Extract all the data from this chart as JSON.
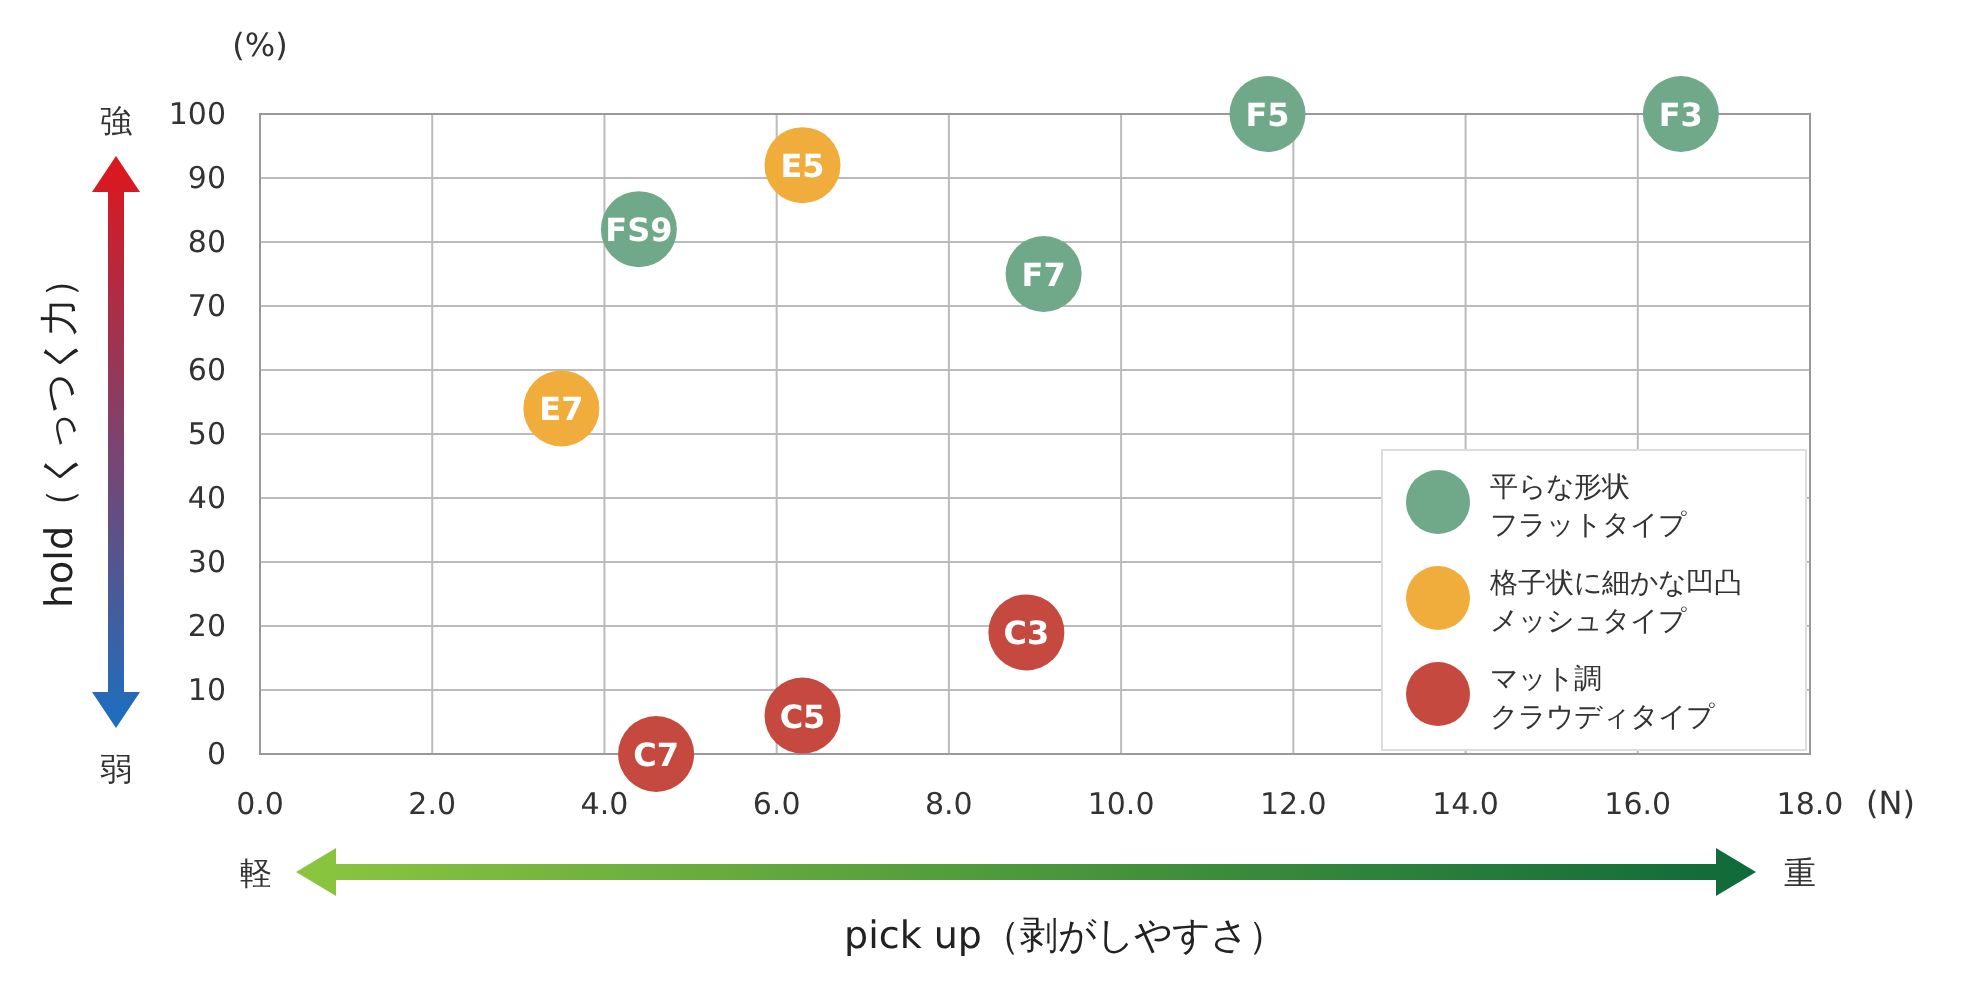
{
  "chart_data": {
    "type": "scatter",
    "xlabel": "pick up（剥がしやすさ）",
    "ylabel": "hold（くっつく力）",
    "xlim": [
      0,
      18
    ],
    "ylim": [
      0,
      100
    ],
    "xticks": [
      {
        "value": 0,
        "label": "0.0"
      },
      {
        "value": 2,
        "label": "2.0"
      },
      {
        "value": 4,
        "label": "4.0"
      },
      {
        "value": 6,
        "label": "6.0"
      },
      {
        "value": 8,
        "label": "8.0"
      },
      {
        "value": 10,
        "label": "10.0"
      },
      {
        "value": 12,
        "label": "12.0"
      },
      {
        "value": 14,
        "label": "14.0"
      },
      {
        "value": 16,
        "label": "16.0"
      },
      {
        "value": 18,
        "label": "18.0"
      }
    ],
    "yticks": [
      0,
      10,
      20,
      30,
      40,
      50,
      60,
      70,
      80,
      90,
      100
    ],
    "grid": true,
    "legend": "bottom right",
    "marker": "circle",
    "series": [
      {
        "name": "平らな形状フラットタイプ",
        "color": "#6fa98a",
        "x": [
          11.7,
          16.5,
          4.4,
          9.1
        ],
        "values": [
          100,
          100,
          82,
          75
        ]
      },
      {
        "name": "格子状に細かな凹凸メッシュタイプ",
        "color": "#f0ad3c",
        "x": [
          6.3,
          3.5
        ],
        "values": [
          92,
          54
        ]
      },
      {
        "name": "マット調クラウディタイプ",
        "color": "#c6493f",
        "x": [
          8.9,
          6.3,
          4.6
        ],
        "values": [
          19,
          6,
          0
        ]
      }
    ],
    "annotations": [
      "(%)",
      "(N)",
      "強",
      "弱",
      "軽",
      "重",
      {
        "text": "F5",
        "x": 11.7,
        "y": 100
      },
      {
        "text": "F3",
        "x": 16.5,
        "y": 100
      },
      {
        "text": "FS9",
        "x": 4.4,
        "y": 82
      },
      {
        "text": "F7",
        "x": 9.1,
        "y": 75
      },
      {
        "text": "E5",
        "x": 6.3,
        "y": 92
      },
      {
        "text": "E7",
        "x": 3.5,
        "y": 54
      },
      {
        "text": "C3",
        "x": 8.9,
        "y": 19
      },
      {
        "text": "C5",
        "x": 6.3,
        "y": 6
      },
      {
        "text": "C7",
        "x": 4.6,
        "y": 0
      }
    ]
  }
}
